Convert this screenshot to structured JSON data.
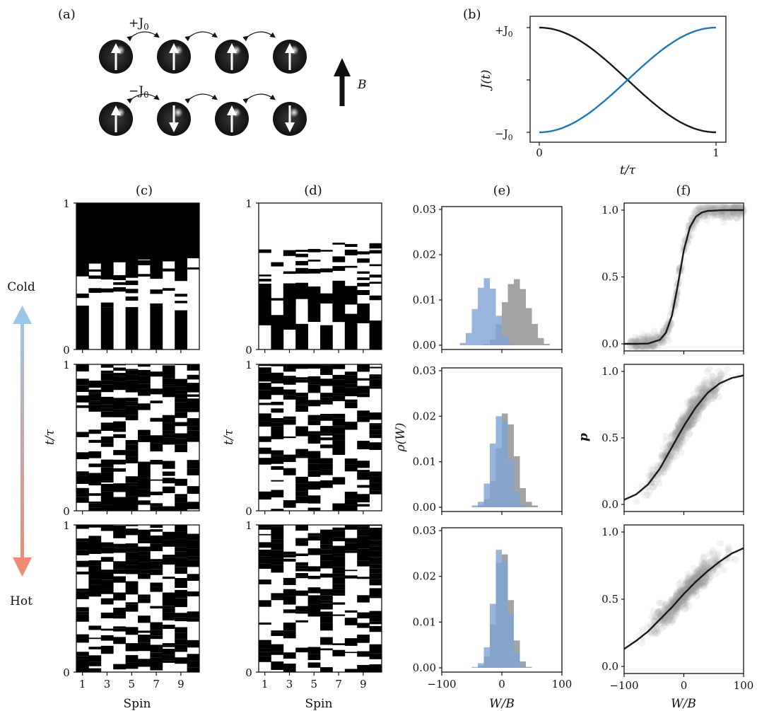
{
  "panel_labels": {
    "a": "(a)",
    "b": "(b)",
    "c": "(c)",
    "d": "(d)",
    "e": "(e)",
    "f": "(f)"
  },
  "schematic": {
    "coupling_pos": "+J",
    "coupling_neg": "−J",
    "coupling_sub": "0",
    "field_label": "B",
    "row_pos_spins": [
      "up",
      "up",
      "up",
      "up"
    ],
    "row_neg_spins": [
      "up",
      "down",
      "up",
      "down"
    ]
  },
  "temperature": {
    "cold": "Cold",
    "hot": "Hot",
    "cold_color": "#9cc6e8",
    "hot_color": "#f08a74"
  },
  "colors": {
    "blue": "#1f77b4",
    "dark": "#1a1a1a",
    "hist_blue": "#7ea3d6",
    "hist_gray": "#8c8c8c",
    "scatter": "#9a9a9a"
  },
  "labels": {
    "spin": "Spin",
    "t_tau": "t/τ",
    "J_t": "J(t)",
    "rho_W": "ρ(W)",
    "W_B": "W/B",
    "p": "p"
  },
  "ticks": {
    "b_x": [
      "0",
      "1"
    ],
    "b_y_top": "+J",
    "b_y_bot": "−J",
    "b_y_sub": "0",
    "raster_y": [
      "0",
      "1"
    ],
    "raster_x": [
      "1",
      "3",
      "5",
      "7",
      "9"
    ],
    "e_y": [
      "0.00",
      "0.01",
      "0.02",
      "0.03"
    ],
    "f_y": [
      "0.0",
      "0.5",
      "1.0"
    ],
    "wb_x": [
      "−100",
      "0",
      "100"
    ]
  },
  "chart_data": [
    {
      "panel": "b",
      "type": "line",
      "xlabel": "t/τ",
      "ylabel": "J(t)",
      "xlim": [
        0,
        1
      ],
      "ylim": [
        -1,
        1
      ],
      "series": [
        {
          "color": "#1a1a1a",
          "x": [
            0,
            0.1,
            0.2,
            0.3,
            0.4,
            0.5,
            0.6,
            0.7,
            0.8,
            0.9,
            1
          ],
          "y": [
            1,
            0.95,
            0.81,
            0.59,
            0.31,
            0,
            -0.31,
            -0.59,
            -0.81,
            -0.95,
            -1
          ]
        },
        {
          "color": "#1f77b4",
          "x": [
            0,
            0.1,
            0.2,
            0.3,
            0.4,
            0.5,
            0.6,
            0.7,
            0.8,
            0.9,
            1
          ],
          "y": [
            -1,
            -0.95,
            -0.81,
            -0.59,
            -0.31,
            0,
            0.31,
            0.59,
            0.81,
            0.95,
            1
          ]
        }
      ]
    },
    {
      "panel": "e",
      "row": "cold",
      "type": "bar",
      "xlabel": "W/B",
      "ylabel": "ρ(W)",
      "xlim": [
        -100,
        100
      ],
      "ylim": [
        0,
        0.03
      ],
      "bin_edges": [
        -100,
        -90,
        -80,
        -70,
        -60,
        -50,
        -40,
        -30,
        -20,
        -10,
        0,
        10,
        20,
        30,
        40,
        50,
        60,
        70,
        80,
        90,
        100
      ],
      "series": [
        {
          "color": "#7ea3d6",
          "values": [
            0,
            0,
            0,
            0.0005,
            0.0027,
            0.008,
            0.0127,
            0.0148,
            0.0125,
            0.0065,
            0.002,
            0.0004,
            0,
            0,
            0,
            0,
            0,
            0,
            0,
            0
          ]
        },
        {
          "color": "#8c8c8c",
          "values": [
            0,
            0,
            0,
            0,
            0,
            0,
            0,
            0.0002,
            0.0012,
            0.0046,
            0.0095,
            0.0135,
            0.0146,
            0.0124,
            0.0082,
            0.0047,
            0.0016,
            0.0003,
            0,
            0
          ]
        }
      ]
    },
    {
      "panel": "e",
      "row": "middle",
      "type": "bar",
      "xlabel": "W/B",
      "ylabel": "ρ(W)",
      "xlim": [
        -100,
        100
      ],
      "ylim": [
        0,
        0.03
      ],
      "bin_edges": [
        -100,
        -90,
        -80,
        -70,
        -60,
        -50,
        -40,
        -30,
        -20,
        -10,
        0,
        10,
        20,
        30,
        40,
        50,
        60,
        70,
        80,
        90,
        100
      ],
      "series": [
        {
          "color": "#7ea3d6",
          "values": [
            0,
            0,
            0,
            0,
            0,
            0.0004,
            0.0012,
            0.0052,
            0.014,
            0.02,
            0.0188,
            0.0105,
            0.0035,
            0.0006,
            0,
            0,
            0,
            0,
            0,
            0
          ]
        },
        {
          "color": "#8c8c8c",
          "values": [
            0,
            0,
            0,
            0,
            0,
            0,
            0.0004,
            0.0018,
            0.0058,
            0.013,
            0.0206,
            0.0182,
            0.0112,
            0.0042,
            0.0012,
            0.0004,
            0,
            0,
            0,
            0
          ]
        }
      ]
    },
    {
      "panel": "e",
      "row": "hot",
      "type": "bar",
      "xlabel": "W/B",
      "ylabel": "ρ(W)",
      "xlim": [
        -100,
        100
      ],
      "ylim": [
        0,
        0.03
      ],
      "bin_edges": [
        -100,
        -90,
        -80,
        -70,
        -60,
        -50,
        -40,
        -30,
        -20,
        -10,
        0,
        10,
        20,
        30,
        40,
        50,
        60,
        70,
        80,
        90,
        100
      ],
      "series": [
        {
          "color": "#7ea3d6",
          "values": [
            0,
            0,
            0,
            0,
            0,
            0.0002,
            0.001,
            0.0045,
            0.014,
            0.0258,
            0.0234,
            0.0118,
            0.0034,
            0.0004,
            0,
            0,
            0,
            0,
            0,
            0
          ]
        },
        {
          "color": "#8c8c8c",
          "values": [
            0,
            0,
            0,
            0,
            0,
            0,
            0.0005,
            0.0025,
            0.0095,
            0.023,
            0.0248,
            0.0148,
            0.006,
            0.0014,
            0.0002,
            0,
            0,
            0,
            0,
            0
          ]
        }
      ]
    },
    {
      "panel": "f",
      "row": "cold",
      "type": "scatter",
      "xlabel": "W/B",
      "ylabel": "p",
      "xlim": [
        -100,
        100
      ],
      "ylim": [
        0,
        1
      ],
      "curve": {
        "x": [
          -100,
          -80,
          -60,
          -40,
          -30,
          -20,
          -10,
          0,
          10,
          20,
          30,
          40,
          60,
          80,
          100
        ],
        "y": [
          0,
          0,
          0.002,
          0.03,
          0.083,
          0.21,
          0.44,
          0.7,
          0.87,
          0.95,
          0.982,
          0.994,
          0.999,
          1,
          1
        ]
      },
      "cloud": {
        "x_range": [
          -90,
          100
        ],
        "spread": 0.05
      }
    },
    {
      "panel": "f",
      "row": "middle",
      "type": "scatter",
      "xlabel": "W/B",
      "ylabel": "p",
      "xlim": [
        -100,
        100
      ],
      "ylim": [
        0,
        1
      ],
      "curve": {
        "x": [
          -100,
          -80,
          -60,
          -40,
          -20,
          0,
          20,
          40,
          60,
          80,
          100
        ],
        "y": [
          0.035,
          0.075,
          0.15,
          0.27,
          0.43,
          0.59,
          0.73,
          0.84,
          0.91,
          0.95,
          0.97
        ]
      },
      "cloud": {
        "x_range": [
          -45,
          55
        ],
        "spread": 0.05
      }
    },
    {
      "panel": "f",
      "row": "hot",
      "type": "scatter",
      "xlabel": "W/B",
      "ylabel": "p",
      "xlim": [
        -100,
        100
      ],
      "ylim": [
        0,
        1
      ],
      "curve": {
        "x": [
          -100,
          -80,
          -60,
          -40,
          -20,
          0,
          20,
          40,
          60,
          80,
          100
        ],
        "y": [
          0.13,
          0.19,
          0.26,
          0.35,
          0.44,
          0.54,
          0.63,
          0.71,
          0.78,
          0.84,
          0.88
        ]
      },
      "cloud": {
        "x_range": [
          -45,
          55
        ],
        "spread": 0.045
      }
    }
  ]
}
